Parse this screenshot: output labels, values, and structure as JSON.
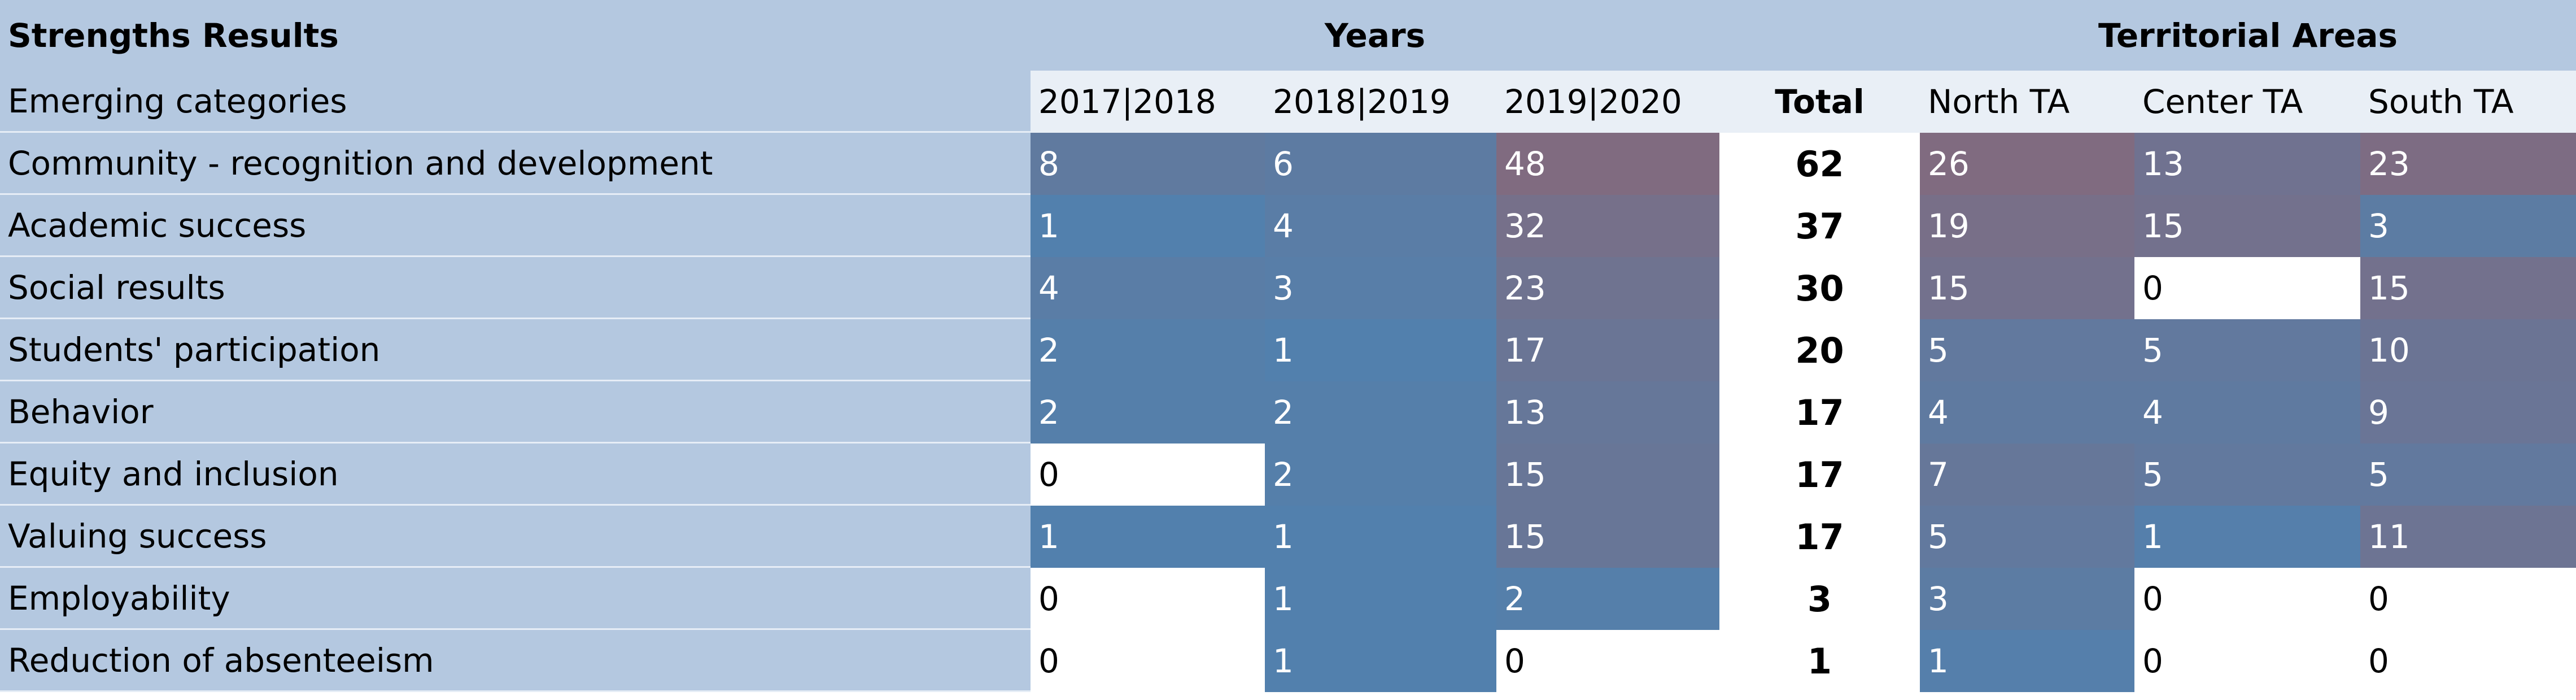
{
  "chart_data": {
    "type": "table",
    "title": "Strengths Results",
    "header": {
      "corner": "Strengths Results",
      "group_years": "Years",
      "group_areas": "Territorial Areas"
    },
    "columns": {
      "label": "Emerging categories",
      "years": [
        "2017|2018",
        "2018|2019",
        "2019|2020"
      ],
      "total": "Total",
      "areas": [
        "North TA",
        "Center TA",
        "South TA"
      ]
    },
    "rows": [
      {
        "category": "Community - recognition and development",
        "years": [
          8,
          6,
          48
        ],
        "total": 62,
        "areas": [
          26,
          13,
          23
        ]
      },
      {
        "category": "Academic success",
        "years": [
          1,
          4,
          32
        ],
        "total": 37,
        "areas": [
          19,
          15,
          3
        ]
      },
      {
        "category": "Social results",
        "years": [
          4,
          3,
          23
        ],
        "total": 30,
        "areas": [
          15,
          0,
          15
        ]
      },
      {
        "category": "Students' participation",
        "years": [
          2,
          1,
          17
        ],
        "total": 20,
        "areas": [
          5,
          5,
          10
        ]
      },
      {
        "category": "Behavior",
        "years": [
          2,
          2,
          13
        ],
        "total": 17,
        "areas": [
          4,
          4,
          9
        ]
      },
      {
        "category": "Equity and inclusion",
        "years": [
          0,
          2,
          15
        ],
        "total": 17,
        "areas": [
          7,
          5,
          5
        ]
      },
      {
        "category": "Valuing success",
        "years": [
          1,
          1,
          15
        ],
        "total": 17,
        "areas": [
          5,
          1,
          11
        ]
      },
      {
        "category": "Employability",
        "years": [
          0,
          1,
          2
        ],
        "total": 3,
        "areas": [
          3,
          0,
          0
        ]
      },
      {
        "category": "Reduction of absenteeism",
        "years": [
          0,
          1,
          0
        ],
        "total": 1,
        "areas": [
          1,
          0,
          0
        ]
      }
    ],
    "heatmap_colors": {
      "low": "#4a84b5",
      "high": "#806b80",
      "zero": "#ffffff"
    }
  }
}
